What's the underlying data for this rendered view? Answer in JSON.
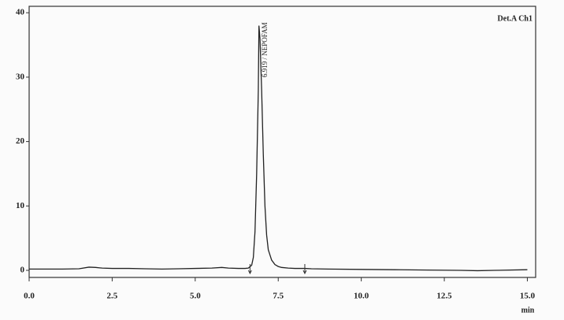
{
  "chart_data": {
    "type": "line",
    "detector_label": "Det.A Ch1",
    "x_label": "min",
    "x": [
      0,
      0.5,
      1,
      1.5,
      1.8,
      2.0,
      2.2,
      2.5,
      3,
      3.5,
      4,
      4.5,
      5,
      5.5,
      5.8,
      6,
      6.3,
      6.5,
      6.6,
      6.7,
      6.75,
      6.8,
      6.85,
      6.9,
      6.919,
      6.95,
      7.0,
      7.05,
      7.1,
      7.15,
      7.2,
      7.3,
      7.4,
      7.5,
      7.6,
      7.8,
      8,
      8.3,
      8.5,
      9,
      10,
      11,
      12,
      13,
      13.5,
      14,
      15
    ],
    "values": [
      0.2,
      0.2,
      0.2,
      0.25,
      0.5,
      0.45,
      0.35,
      0.3,
      0.3,
      0.25,
      0.2,
      0.25,
      0.3,
      0.35,
      0.45,
      0.35,
      0.3,
      0.3,
      0.35,
      0.8,
      2,
      6,
      15,
      28,
      38,
      36,
      28,
      18,
      10,
      5.5,
      3.2,
      1.6,
      0.9,
      0.6,
      0.45,
      0.35,
      0.3,
      0.3,
      0.25,
      0.2,
      0.15,
      0.1,
      0.05,
      0,
      -0.05,
      0,
      0.1
    ],
    "color": "#222222",
    "annotations": [
      {
        "text": "6.919 / NEPOFAM",
        "x": 6.919
      }
    ],
    "baseline_markers": [
      6.65,
      8.3
    ],
    "xlim": [
      0,
      15.25
    ],
    "ylim": [
      -1.1,
      41
    ],
    "xticks": [
      {
        "value": 0,
        "label": "0.0"
      },
      2.5,
      {
        "value": 5,
        "label": "5.0"
      },
      7.5,
      {
        "value": 10,
        "label": "10.0"
      },
      12.5,
      {
        "value": 15,
        "label": "15.0"
      }
    ],
    "yticks": [
      0,
      10,
      20,
      30,
      40
    ]
  }
}
